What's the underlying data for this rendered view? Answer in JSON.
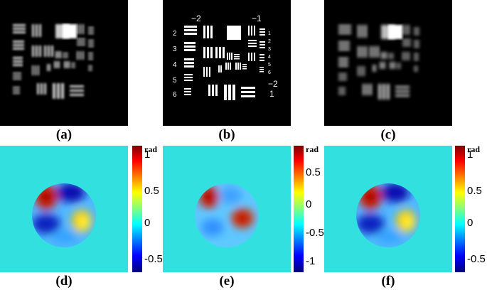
{
  "figure": {
    "subfigure_labels": [
      "(a)",
      "(b)",
      "(c)",
      "(d)",
      "(e)",
      "(f)"
    ],
    "target_numbers": {
      "group_top_left": "−2",
      "group_top_right": "−1",
      "group_bottom_right": "−2",
      "group_bottom_right_2": "1",
      "left_column": [
        "2",
        "3",
        "4",
        "5",
        "6"
      ],
      "right_column": [
        "1",
        "2",
        "3",
        "4",
        "5",
        "6"
      ]
    },
    "colorbars": [
      {
        "unit": "rad",
        "ticks": [
          "1",
          "0.5",
          "0",
          "-0.5"
        ]
      },
      {
        "unit": "rad",
        "ticks": [
          "0.5",
          "0",
          "-0.5",
          "-1"
        ]
      },
      {
        "unit": "rad",
        "ticks": [
          "1",
          "0.5",
          "0",
          "-0.5"
        ]
      }
    ],
    "colors": {
      "background_phase": "#33e0e0",
      "jet_positive": "#cc0000",
      "jet_negative": "#0a0a9a"
    }
  }
}
